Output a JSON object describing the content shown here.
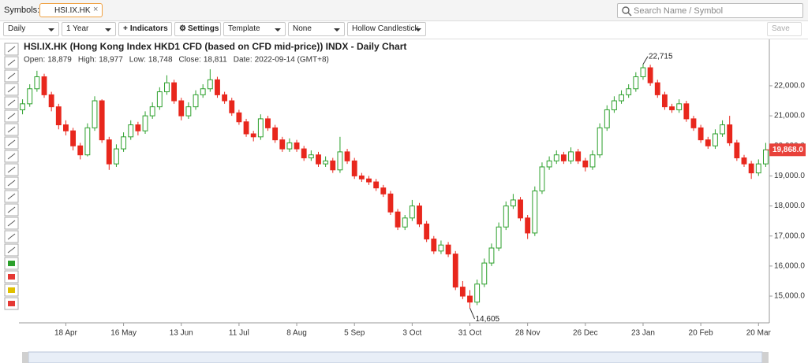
{
  "toolbar": {
    "symbols_label": "Symbols:",
    "symbol_tab": "HSI.IX.HK",
    "search_placeholder": "Search Name / Symbol",
    "dropdowns": [
      "Daily",
      "1 Year",
      "Indicators",
      "Settings",
      "Template",
      "None",
      "Hollow Candlestick"
    ],
    "save": "Save"
  },
  "chart_data": {
    "type": "candlestick",
    "title": "HSI.IX.HK (Hong Kong Index HKD1 CFD (based on CFD mid-price)) INDX - Daily Chart",
    "info": [
      {
        "label": "Open:",
        "value": "18,879"
      },
      {
        "label": "High:",
        "value": "18,977"
      },
      {
        "label": "Low:",
        "value": "18,748"
      },
      {
        "label": "Close:",
        "value": "18,811"
      },
      {
        "label": "Date:",
        "value": "2022-09-14 (GMT+8)"
      }
    ],
    "up_color": "#2ca02c",
    "down_color": "#e8271d",
    "categories": [
      null,
      null,
      null,
      null,
      null,
      null,
      "18 Apr",
      null,
      null,
      null,
      null,
      null,
      null,
      null,
      "16 May",
      null,
      null,
      null,
      null,
      null,
      null,
      null,
      "13 Jun",
      null,
      null,
      null,
      null,
      null,
      null,
      null,
      "11 Jul",
      null,
      null,
      null,
      null,
      null,
      null,
      null,
      "8 Aug",
      null,
      null,
      null,
      null,
      null,
      null,
      null,
      "5 Sep",
      null,
      null,
      null,
      null,
      null,
      null,
      null,
      "3 Oct",
      null,
      null,
      null,
      null,
      null,
      null,
      null,
      "31 Oct",
      null,
      null,
      null,
      null,
      null,
      null,
      null,
      "28 Nov",
      null,
      null,
      null,
      null,
      null,
      null,
      null,
      "26 Dec",
      null,
      null,
      null,
      null,
      null,
      null,
      null,
      "23 Jan",
      null,
      null,
      null,
      null,
      null,
      null,
      null,
      "20 Feb",
      null,
      null,
      null,
      null,
      null,
      null,
      null,
      "20 Mar",
      null
    ],
    "ohlc": [
      [
        21200,
        21550,
        21050,
        21400
      ],
      [
        21400,
        22050,
        21300,
        21900
      ],
      [
        21900,
        22500,
        21800,
        22300
      ],
      [
        22300,
        22400,
        21600,
        21700
      ],
      [
        21700,
        21800,
        21150,
        21300
      ],
      [
        21300,
        21400,
        20550,
        20700
      ],
      [
        20700,
        20850,
        20350,
        20500
      ],
      [
        20500,
        20600,
        19850,
        20000
      ],
      [
        20000,
        20100,
        19550,
        19700
      ],
      [
        19700,
        20750,
        19650,
        20600
      ],
      [
        20600,
        21650,
        20500,
        21500
      ],
      [
        21500,
        21550,
        20100,
        20200
      ],
      [
        20200,
        20300,
        19200,
        19400
      ],
      [
        19400,
        20050,
        19300,
        19900
      ],
      [
        19900,
        20450,
        19800,
        20300
      ],
      [
        20300,
        20850,
        20200,
        20700
      ],
      [
        20700,
        20800,
        20350,
        20500
      ],
      [
        20500,
        21150,
        20400,
        21000
      ],
      [
        21000,
        21450,
        20900,
        21300
      ],
      [
        21300,
        21950,
        21200,
        21800
      ],
      [
        21800,
        22350,
        21700,
        22100
      ],
      [
        22100,
        22200,
        21400,
        21500
      ],
      [
        21500,
        21600,
        20850,
        21000
      ],
      [
        21000,
        21450,
        20900,
        21300
      ],
      [
        21300,
        21850,
        21200,
        21700
      ],
      [
        21700,
        22050,
        21600,
        21900
      ],
      [
        21900,
        22550,
        21800,
        22200
      ],
      [
        22200,
        22300,
        21600,
        21700
      ],
      [
        21700,
        21800,
        21400,
        21500
      ],
      [
        21500,
        21600,
        21000,
        21100
      ],
      [
        21100,
        21200,
        20700,
        20800
      ],
      [
        20800,
        20900,
        20300,
        20400
      ],
      [
        20400,
        20500,
        20150,
        20300
      ],
      [
        20300,
        21050,
        20200,
        20900
      ],
      [
        20900,
        21000,
        20500,
        20600
      ],
      [
        20600,
        20700,
        20100,
        20200
      ],
      [
        20200,
        20300,
        19800,
        19900
      ],
      [
        19900,
        20250,
        19800,
        20100
      ],
      [
        20100,
        20200,
        19800,
        19900
      ],
      [
        19900,
        20000,
        19500,
        19600
      ],
      [
        19600,
        19850,
        19500,
        19700
      ],
      [
        19700,
        19800,
        19300,
        19400
      ],
      [
        19400,
        19650,
        19300,
        19500
      ],
      [
        19500,
        19600,
        19100,
        19200
      ],
      [
        19200,
        20300,
        19100,
        19800
      ],
      [
        19800,
        19900,
        19400,
        19500
      ],
      [
        19500,
        19600,
        18900,
        19000
      ],
      [
        19000,
        19100,
        18800,
        18900
      ],
      [
        18900,
        19000,
        18700,
        18800
      ],
      [
        18800,
        18900,
        18500,
        18600
      ],
      [
        18600,
        18700,
        18300,
        18400
      ],
      [
        18400,
        18500,
        17700,
        17800
      ],
      [
        17800,
        17900,
        17200,
        17300
      ],
      [
        17300,
        17700,
        17200,
        17600
      ],
      [
        17600,
        18200,
        17500,
        18000
      ],
      [
        18000,
        18100,
        17300,
        17400
      ],
      [
        17400,
        17500,
        16800,
        16900
      ],
      [
        16900,
        17000,
        16400,
        16500
      ],
      [
        16500,
        16850,
        16400,
        16700
      ],
      [
        16700,
        16800,
        16300,
        16400
      ],
      [
        16400,
        16500,
        15200,
        15300
      ],
      [
        15300,
        15500,
        14900,
        15000
      ],
      [
        15000,
        15200,
        14605,
        14800
      ],
      [
        14800,
        15550,
        14700,
        15400
      ],
      [
        15400,
        16250,
        15300,
        16100
      ],
      [
        16100,
        16750,
        16000,
        16600
      ],
      [
        16600,
        17450,
        16500,
        17300
      ],
      [
        17300,
        18150,
        17200,
        18000
      ],
      [
        18000,
        18400,
        17900,
        18200
      ],
      [
        18200,
        18300,
        17500,
        17600
      ],
      [
        17600,
        17700,
        16900,
        17100
      ],
      [
        17100,
        18650,
        17000,
        18500
      ],
      [
        18500,
        19450,
        18400,
        19300
      ],
      [
        19300,
        19650,
        19200,
        19500
      ],
      [
        19500,
        19850,
        19400,
        19700
      ],
      [
        19700,
        19800,
        19400,
        19500
      ],
      [
        19500,
        19950,
        19400,
        19800
      ],
      [
        19800,
        19900,
        19400,
        19500
      ],
      [
        19500,
        19600,
        19150,
        19300
      ],
      [
        19300,
        19850,
        19200,
        19700
      ],
      [
        19700,
        20750,
        19600,
        20600
      ],
      [
        20600,
        21350,
        20500,
        21200
      ],
      [
        21200,
        21650,
        21100,
        21500
      ],
      [
        21500,
        21850,
        21400,
        21700
      ],
      [
        21700,
        22050,
        21600,
        21900
      ],
      [
        21900,
        22450,
        21800,
        22300
      ],
      [
        22300,
        22715,
        22200,
        22600
      ],
      [
        22600,
        22700,
        22000,
        22100
      ],
      [
        22100,
        22200,
        21600,
        21700
      ],
      [
        21700,
        21800,
        21200,
        21300
      ],
      [
        21300,
        21400,
        21100,
        21200
      ],
      [
        21200,
        21550,
        21100,
        21400
      ],
      [
        21400,
        21500,
        20800,
        20900
      ],
      [
        20900,
        21000,
        20500,
        20600
      ],
      [
        20600,
        20700,
        20100,
        20200
      ],
      [
        20200,
        20300,
        19900,
        20000
      ],
      [
        20000,
        20550,
        19900,
        20400
      ],
      [
        20400,
        20850,
        20300,
        20700
      ],
      [
        20700,
        21000,
        20000,
        20100
      ],
      [
        20100,
        20200,
        19500,
        19600
      ],
      [
        19600,
        19700,
        19300,
        19400
      ],
      [
        19400,
        19500,
        18900,
        19100
      ],
      [
        19100,
        19550,
        19000,
        19400
      ],
      [
        19400,
        20100,
        19300,
        19868
      ]
    ],
    "ylim": [
      14110,
      23230
    ],
    "yticks": [
      {
        "value": 15000,
        "label": "15,000.0"
      },
      {
        "value": 16000,
        "label": "16,000.0"
      },
      {
        "value": 17000,
        "label": "17,000.0"
      },
      {
        "value": 18000,
        "label": "18,000.0"
      },
      {
        "value": 19000,
        "label": "19,000.0"
      },
      {
        "value": 20000,
        "label": "20,000.0"
      },
      {
        "value": 21000,
        "label": "21,000.0"
      },
      {
        "value": 22000,
        "label": "22,000.0"
      }
    ],
    "last_price": {
      "value": 19868,
      "label": "19,868.0"
    },
    "annotations": [
      {
        "value": 22715,
        "label": "22,715",
        "at": "high"
      },
      {
        "value": 14605,
        "label": "14,605",
        "at": "low"
      }
    ]
  }
}
